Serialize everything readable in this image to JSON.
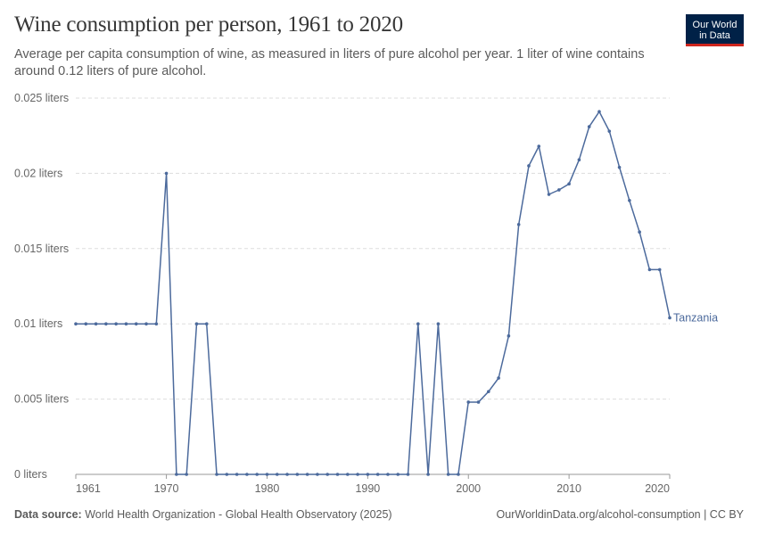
{
  "header": {
    "title": "Wine consumption per person, 1961 to 2020",
    "subtitle": "Average per capita consumption of wine, as measured in liters of pure alcohol per year. 1 liter of wine contains around 0.12 liters of pure alcohol.",
    "logo_line1": "Our World",
    "logo_line2": "in Data"
  },
  "footer": {
    "source_label": "Data source:",
    "source_text": "World Health Organization - Global Health Observatory (2025)",
    "credit": "OurWorldinData.org/alcohol-consumption | CC BY"
  },
  "colors": {
    "series": "#4c6a9c",
    "grid": "#dddddd",
    "logo_bg": "#002147",
    "logo_accent": "#ce261e"
  },
  "chart_data": {
    "type": "line",
    "x_ticks": [
      1961,
      1970,
      1980,
      1990,
      2000,
      2010,
      2020
    ],
    "y_ticks": [
      0,
      0.005,
      0.01,
      0.015,
      0.02,
      0.025
    ],
    "y_tick_labels": [
      "0 liters",
      "0.005 liters",
      "0.01 liters",
      "0.015 liters",
      "0.02 liters",
      "0.025 liters"
    ],
    "xlim": [
      1961,
      2020
    ],
    "ylim": [
      0,
      0.025
    ],
    "grid": "horizontal dashed",
    "series": [
      {
        "name": "Tanzania",
        "color": "#4c6a9c",
        "x": [
          1961,
          1962,
          1963,
          1964,
          1965,
          1966,
          1967,
          1968,
          1969,
          1970,
          1971,
          1972,
          1973,
          1974,
          1975,
          1976,
          1977,
          1978,
          1979,
          1980,
          1981,
          1982,
          1983,
          1984,
          1985,
          1986,
          1987,
          1988,
          1989,
          1990,
          1991,
          1992,
          1993,
          1994,
          1995,
          1996,
          1997,
          1998,
          1999,
          2000,
          2001,
          2002,
          2003,
          2004,
          2005,
          2006,
          2007,
          2008,
          2009,
          2010,
          2011,
          2012,
          2013,
          2014,
          2015,
          2016,
          2017,
          2018,
          2019,
          2020
        ],
        "y": [
          0.01,
          0.01,
          0.01,
          0.01,
          0.01,
          0.01,
          0.01,
          0.01,
          0.01,
          0.02,
          0,
          0,
          0.01,
          0.01,
          0,
          0,
          0,
          0,
          0,
          0,
          0,
          0,
          0,
          0,
          0,
          0,
          0,
          0,
          0,
          0,
          0,
          0,
          0,
          0,
          0.01,
          0,
          0.01,
          0,
          0,
          0.0048,
          0.0048,
          0.0055,
          0.0064,
          0.0092,
          0.0166,
          0.0205,
          0.0218,
          0.0186,
          0.0189,
          0.0193,
          0.0209,
          0.0231,
          0.0241,
          0.0228,
          0.0204,
          0.0182,
          0.0161,
          0.0136,
          0.0136,
          0.0104
        ]
      }
    ]
  }
}
